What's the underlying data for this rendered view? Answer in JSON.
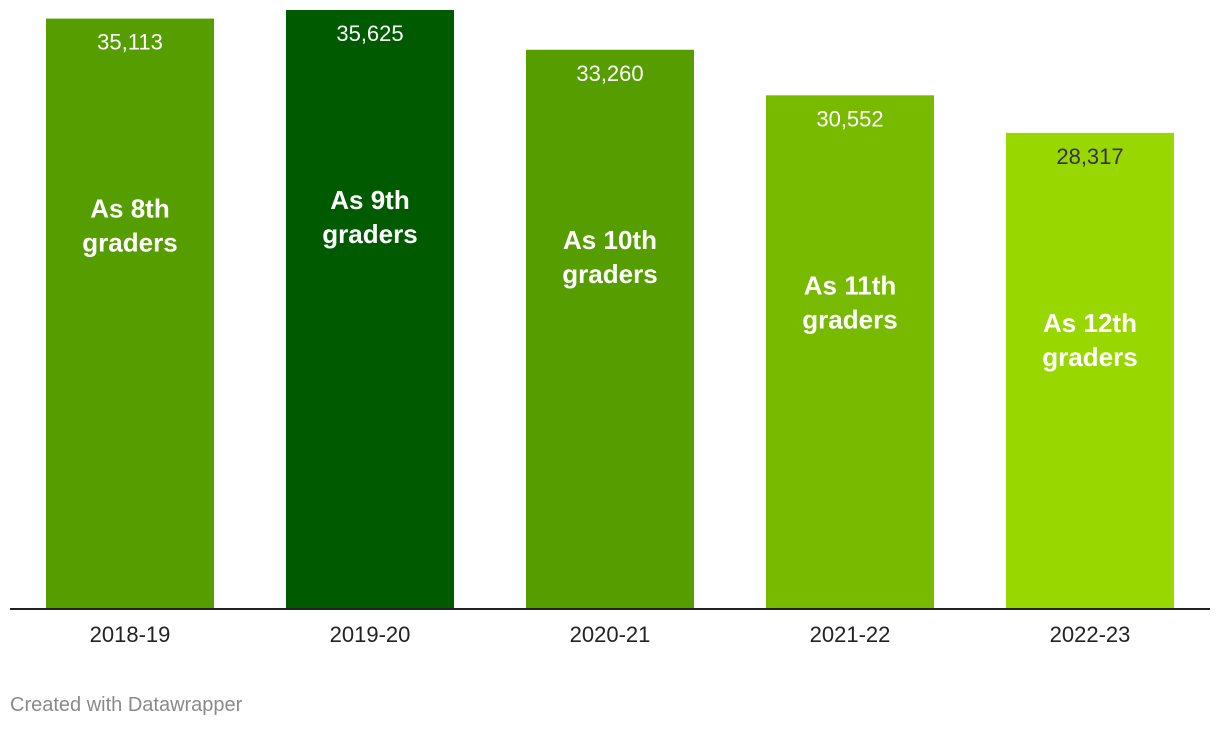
{
  "chart_data": {
    "type": "bar",
    "categories": [
      "2018-19",
      "2019-20",
      "2020-21",
      "2021-22",
      "2022-23"
    ],
    "values": [
      35113,
      35625,
      33260,
      30552,
      28317
    ],
    "value_labels": [
      "35,113",
      "35,625",
      "33,260",
      "30,552",
      "28,317"
    ],
    "annotations": [
      [
        "As 8th",
        "graders"
      ],
      [
        "As 9th",
        "graders"
      ],
      [
        "As 10th",
        "graders"
      ],
      [
        "As 11th",
        "graders"
      ],
      [
        "As 12th",
        "graders"
      ]
    ],
    "colors": [
      "#569d00",
      "#005b00",
      "#569d00",
      "#78ba00",
      "#99d700"
    ],
    "value_label_colors": [
      "#ffffff",
      "#ffffff",
      "#ffffff",
      "#ffffff",
      "#333333"
    ],
    "ylim": [
      0,
      35625
    ],
    "grid": false,
    "title": "",
    "xlabel": "",
    "ylabel": ""
  },
  "footer": {
    "credit": "Created with Datawrapper"
  }
}
